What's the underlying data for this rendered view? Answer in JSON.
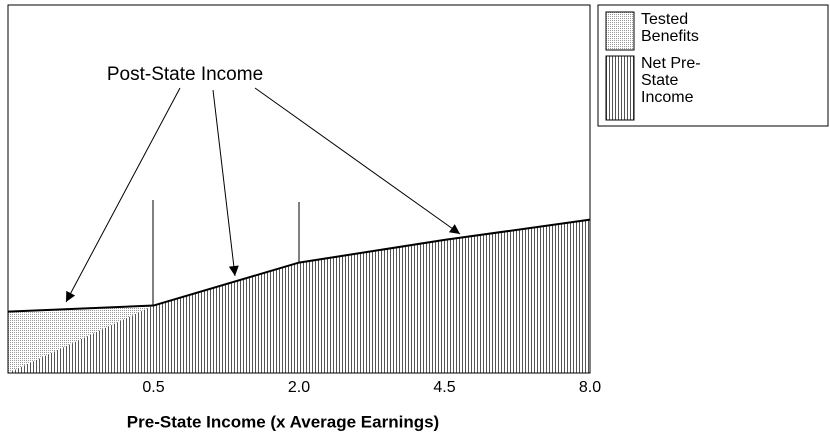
{
  "chart_data": {
    "type": "stacked-area",
    "annotation": "Post-State Income",
    "x_label": "Pre-State Income (x Average Earnings)",
    "categories": [
      null,
      "0.5",
      "2.0",
      "4.5",
      "8.0"
    ],
    "series": [
      {
        "name": "Net Pre-State Income",
        "color": "#555555",
        "pattern": "vlines",
        "values": [
          0,
          1.1,
          1.8,
          2.17,
          2.5
        ]
      },
      {
        "name": "Tested Benefits",
        "color": "#999999",
        "pattern": "dots",
        "values": [
          1.0,
          0,
          0,
          0,
          0
        ]
      }
    ],
    "ylim": [
      0,
      6
    ],
    "legend": "outside-top-right"
  }
}
